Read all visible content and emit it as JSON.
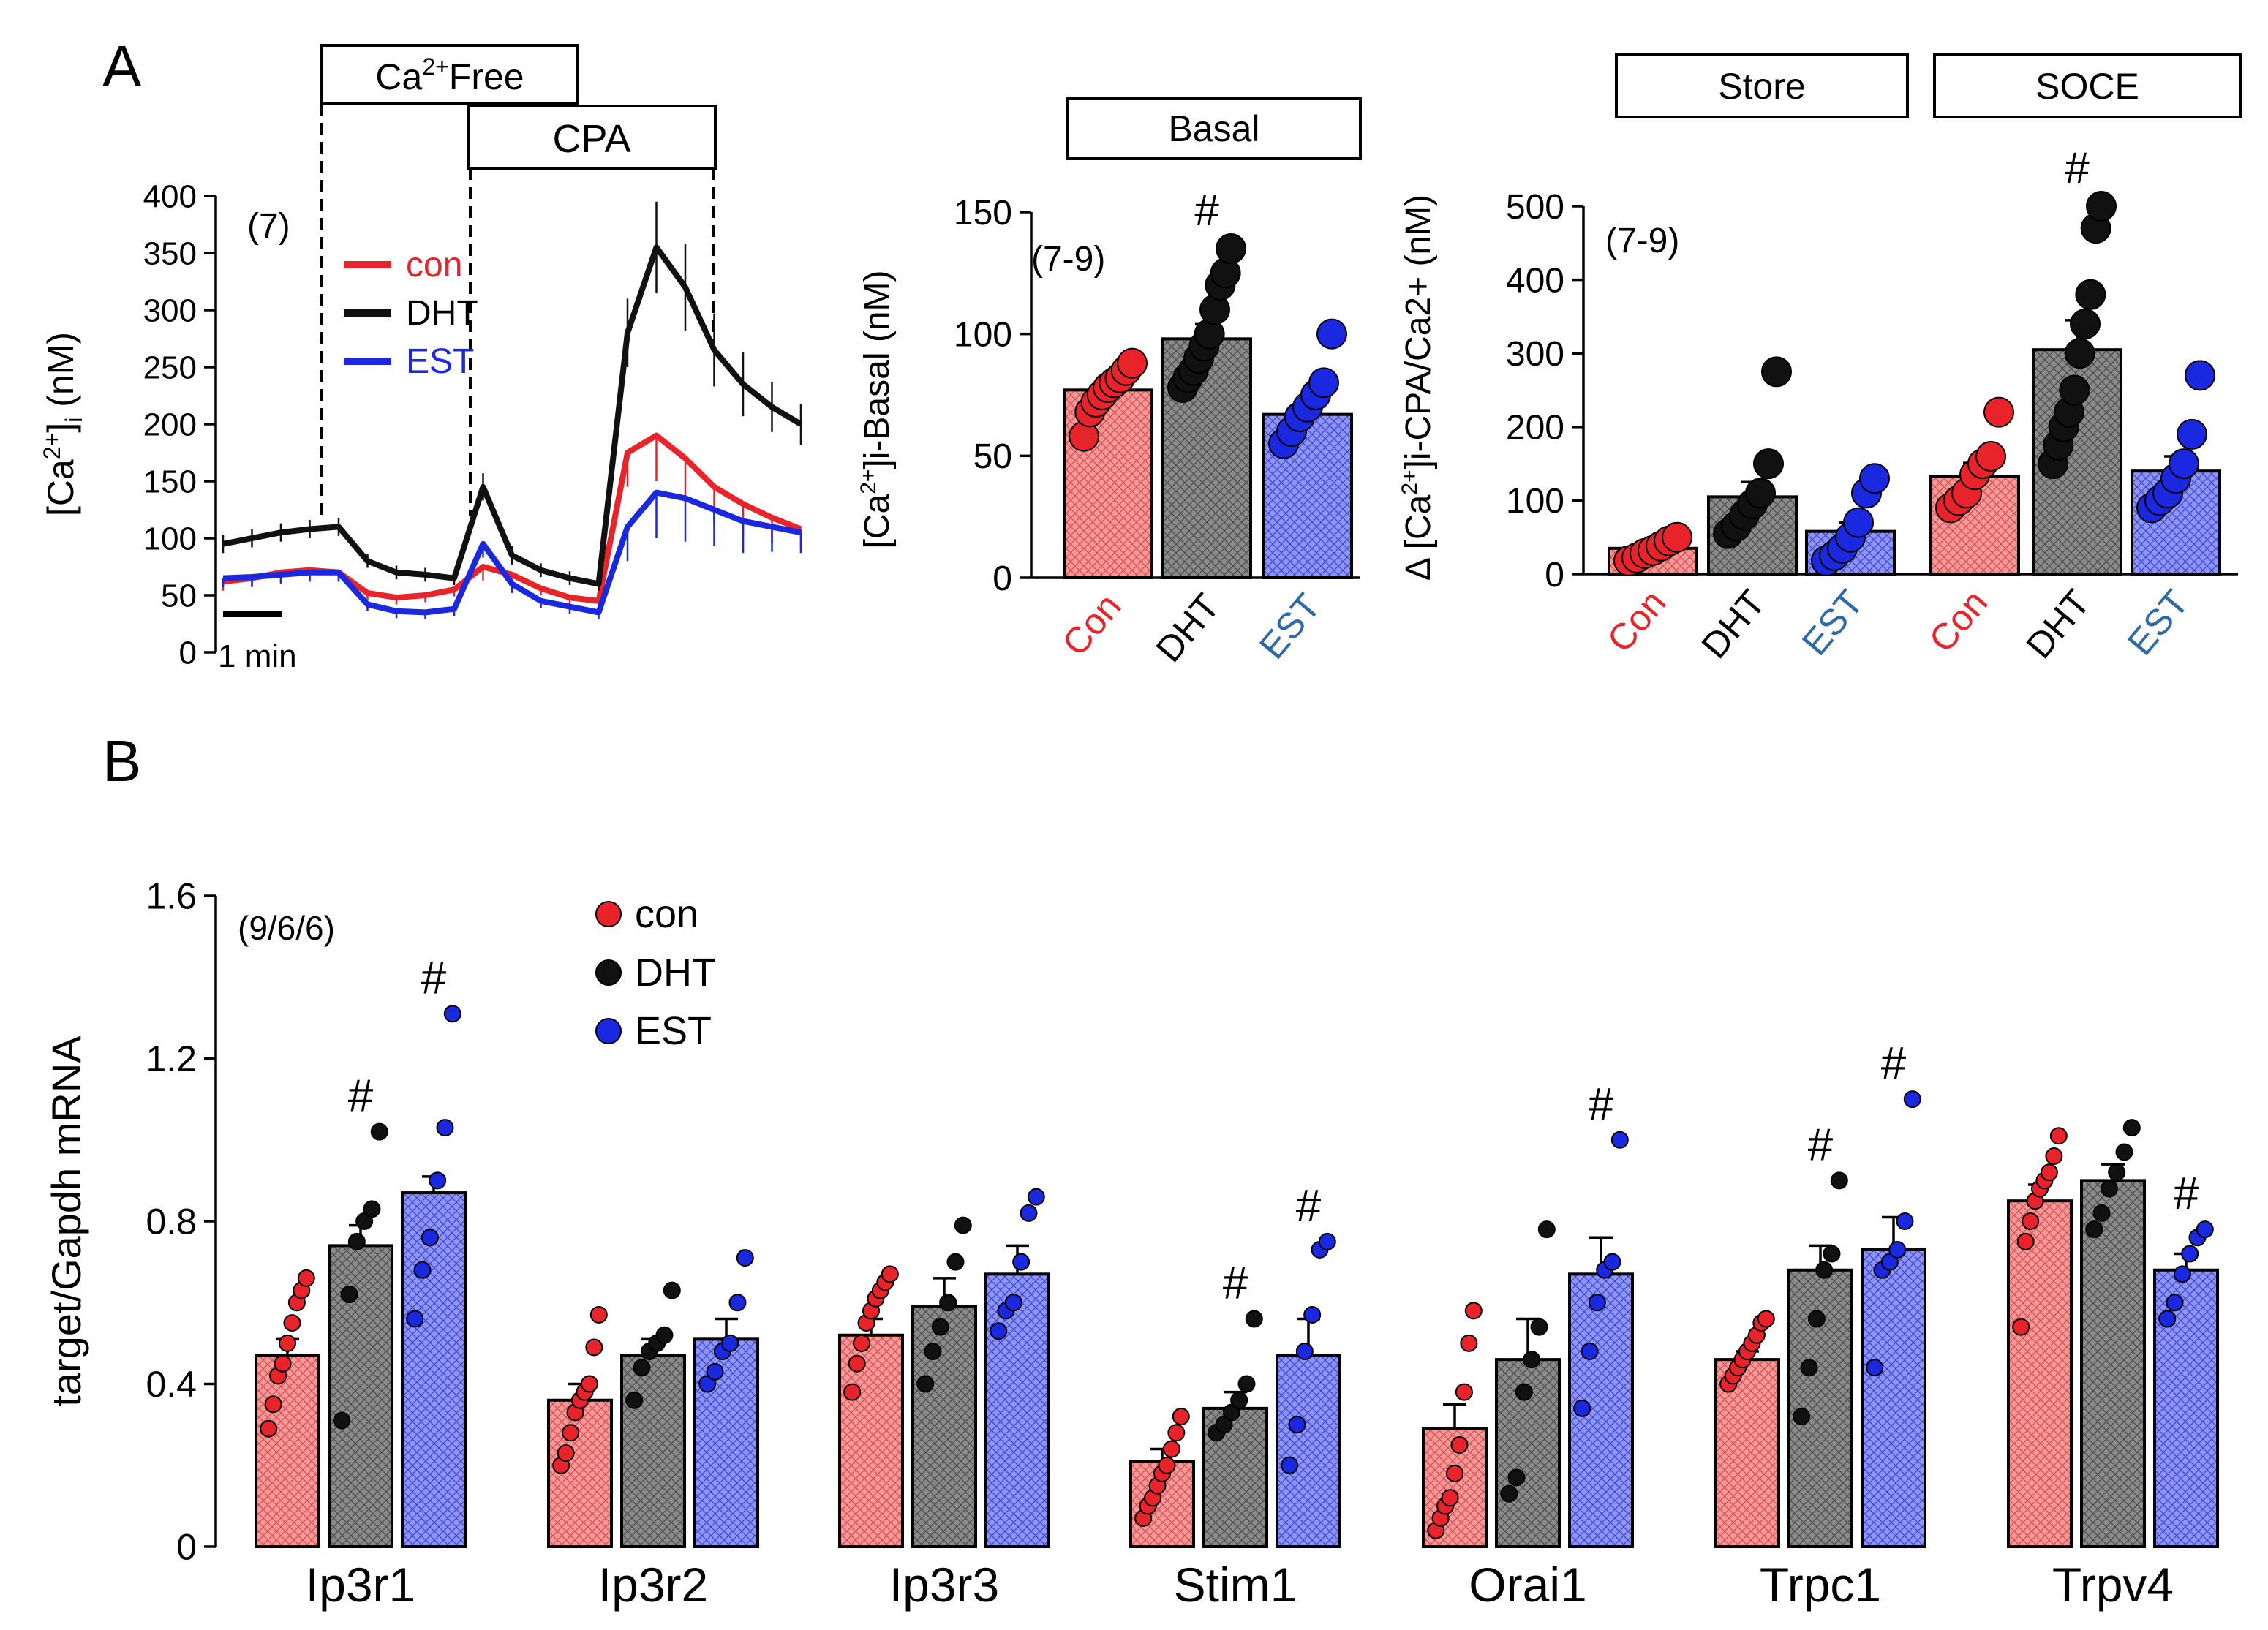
{
  "colors": {
    "con": "#e8242a",
    "dht": "#111111",
    "est": "#1a28e0",
    "con_fill": "#f29a9a",
    "dht_fill": "#8a8a8a",
    "est_fill": "#8f95f2",
    "tick_est": "#2f6aa8"
  },
  "panel_labels": {
    "a": "A",
    "b": "B"
  },
  "chart_data": [
    {
      "id": "trace",
      "type": "line",
      "title": "",
      "ylabel": "[Ca2+]i (nM)",
      "ylabel_main": "[Ca",
      "ylabel_sup": "2+",
      "ylabel_end": "]",
      "ylabel_sub": "i",
      "ylabel_tail": " (nM)",
      "ylim": [
        0,
        400
      ],
      "yticks": [
        "0",
        "50",
        "100",
        "150",
        "200",
        "250",
        "300",
        "350",
        "400"
      ],
      "n_label": "(7)",
      "scale_bar": "1 min",
      "protocol": {
        "ca_free_pre": "Ca",
        "ca_free_sup": "2+",
        "ca_free_post": "Free",
        "cpa": "CPA"
      },
      "x": [
        0,
        5,
        10,
        15,
        20,
        25,
        30,
        35,
        40,
        45,
        50,
        55,
        60,
        65,
        70,
        75,
        80,
        85,
        90,
        95,
        100
      ],
      "series": [
        {
          "name": "con",
          "key": "con",
          "values": [
            62,
            65,
            70,
            72,
            70,
            52,
            48,
            50,
            55,
            75,
            68,
            56,
            48,
            45,
            175,
            190,
            170,
            145,
            130,
            118,
            108
          ]
        },
        {
          "name": "DHT",
          "key": "dht",
          "values": [
            95,
            100,
            105,
            108,
            110,
            80,
            70,
            68,
            65,
            145,
            85,
            72,
            65,
            60,
            280,
            355,
            320,
            265,
            235,
            215,
            200
          ]
        },
        {
          "name": "EST",
          "key": "est",
          "values": [
            65,
            66,
            68,
            70,
            70,
            42,
            36,
            35,
            38,
            95,
            60,
            45,
            40,
            35,
            110,
            140,
            135,
            125,
            115,
            110,
            105
          ]
        }
      ],
      "error": [
        8,
        8,
        8,
        8,
        8,
        6,
        6,
        6,
        6,
        12,
        8,
        6,
        6,
        6,
        30,
        40,
        38,
        32,
        28,
        22,
        18
      ]
    },
    {
      "id": "basal",
      "type": "bar",
      "header": "Basal",
      "ylabel_main": "[Ca",
      "ylabel_sup": "2+",
      "ylabel_tail": "]i-Basal (nM)",
      "ylim": [
        0,
        150
      ],
      "yticks": [
        "0",
        "50",
        "100",
        "150"
      ],
      "n_label": "(7-9)",
      "categories": [
        "Con",
        "DHT",
        "EST"
      ],
      "values": [
        77,
        98,
        67
      ],
      "sem": [
        3,
        6,
        5
      ],
      "points": [
        [
          58,
          68,
          72,
          75,
          78,
          80,
          82,
          85,
          88
        ],
        [
          78,
          82,
          85,
          90,
          95,
          100,
          110,
          120,
          125,
          135
        ],
        [
          55,
          60,
          66,
          70,
          75,
          80,
          100
        ]
      ],
      "significance": [
        "",
        "#",
        ""
      ]
    },
    {
      "id": "store_soce",
      "type": "bar",
      "headers": [
        "Store",
        "SOCE"
      ],
      "ylabel": "Δ [Ca2+]i-CPA/Ca2+ (nM)",
      "ylabel_main": "Δ [Ca",
      "ylabel_sup": "2+",
      "ylabel_tail": "]i-CPA/Ca2+ (nM)",
      "ylim": [
        0,
        500
      ],
      "yticks": [
        "0",
        "100",
        "200",
        "300",
        "400",
        "500"
      ],
      "n_label": "(7-9)",
      "categories": [
        "Con",
        "DHT",
        "EST",
        "Con",
        "DHT",
        "EST"
      ],
      "values": [
        35,
        105,
        58,
        133,
        305,
        140
      ],
      "sem": [
        6,
        20,
        12,
        18,
        40,
        20
      ],
      "points": [
        [
          18,
          22,
          28,
          32,
          38,
          45,
          50
        ],
        [
          55,
          65,
          80,
          95,
          110,
          150,
          275
        ],
        [
          18,
          25,
          35,
          50,
          70,
          110,
          130
        ],
        [
          90,
          100,
          110,
          135,
          150,
          160,
          220
        ],
        [
          150,
          175,
          200,
          220,
          250,
          300,
          340,
          380,
          470,
          500
        ],
        [
          90,
          100,
          110,
          130,
          150,
          190,
          270
        ]
      ],
      "significance": [
        "",
        "",
        "",
        "",
        "#",
        ""
      ]
    },
    {
      "id": "mrna",
      "type": "bar",
      "ylabel": "target/Gapdh mRNA",
      "ylim": [
        0,
        1.6
      ],
      "yticks": [
        "0",
        "0.4",
        "0.8",
        "1.2",
        "1.6"
      ],
      "n_label": "(9/6/6)",
      "legend": [
        "con",
        "DHT",
        "EST"
      ],
      "categories": [
        "Ip3r1",
        "Ip3r2",
        "Ip3r3",
        "Stim1",
        "Orai1",
        "Trpc1",
        "Trpv4"
      ],
      "series": [
        {
          "name": "con",
          "key": "con",
          "values": [
            0.47,
            0.36,
            0.52,
            0.21,
            0.29,
            0.46,
            0.85
          ]
        },
        {
          "name": "DHT",
          "key": "dht",
          "values": [
            0.74,
            0.47,
            0.59,
            0.34,
            0.46,
            0.68,
            0.9
          ]
        },
        {
          "name": "EST",
          "key": "est",
          "values": [
            0.87,
            0.51,
            0.67,
            0.47,
            0.67,
            0.73,
            0.68
          ]
        }
      ],
      "sem": [
        [
          0.04,
          0.05,
          0.04
        ],
        [
          0.04,
          0.04,
          0.05
        ],
        [
          0.04,
          0.07,
          0.07
        ],
        [
          0.03,
          0.04,
          0.09
        ],
        [
          0.06,
          0.1,
          0.09
        ],
        [
          0.02,
          0.06,
          0.08
        ],
        [
          0.04,
          0.04,
          0.04
        ]
      ],
      "points": [
        [
          [
            0.29,
            0.35,
            0.42,
            0.45,
            0.5,
            0.55,
            0.6,
            0.63,
            0.66
          ],
          [
            0.31,
            0.62,
            0.75,
            0.8,
            0.83,
            1.02
          ],
          [
            0.56,
            0.68,
            0.76,
            0.9,
            1.03,
            1.31
          ]
        ],
        [
          [
            0.2,
            0.23,
            0.28,
            0.33,
            0.36,
            0.38,
            0.4,
            0.49,
            0.57
          ],
          [
            0.36,
            0.44,
            0.48,
            0.5,
            0.52,
            0.63
          ],
          [
            0.4,
            0.43,
            0.48,
            0.5,
            0.6,
            0.71
          ]
        ],
        [
          [
            0.38,
            0.45,
            0.5,
            0.55,
            0.58,
            0.61,
            0.63,
            0.65,
            0.67
          ],
          [
            0.4,
            0.48,
            0.54,
            0.6,
            0.7,
            0.79
          ],
          [
            0.53,
            0.58,
            0.6,
            0.7,
            0.82,
            0.86
          ]
        ],
        [
          [
            0.07,
            0.1,
            0.12,
            0.15,
            0.18,
            0.2,
            0.24,
            0.28,
            0.32
          ],
          [
            0.28,
            0.3,
            0.33,
            0.36,
            0.4,
            0.56
          ],
          [
            0.2,
            0.3,
            0.48,
            0.57,
            0.73,
            0.75
          ]
        ],
        [
          [
            0.04,
            0.07,
            0.1,
            0.12,
            0.18,
            0.25,
            0.38,
            0.5,
            0.58
          ],
          [
            0.13,
            0.17,
            0.38,
            0.46,
            0.54,
            0.78
          ],
          [
            0.34,
            0.48,
            0.6,
            0.68,
            0.7,
            1.0
          ]
        ],
        [
          [
            0.4,
            0.42,
            0.44,
            0.46,
            0.48,
            0.5,
            0.52,
            0.55,
            0.56
          ],
          [
            0.32,
            0.44,
            0.56,
            0.68,
            0.72,
            0.9
          ],
          [
            0.44,
            0.68,
            0.7,
            0.73,
            0.8,
            1.1
          ]
        ],
        [
          [
            0.54,
            0.75,
            0.8,
            0.85,
            0.88,
            0.9,
            0.92,
            0.96,
            1.01
          ],
          [
            0.78,
            0.82,
            0.88,
            0.92,
            0.97,
            1.03
          ],
          [
            0.56,
            0.6,
            0.67,
            0.72,
            0.76,
            0.78
          ]
        ]
      ],
      "significance": [
        [
          "",
          "#",
          "#"
        ],
        [
          "",
          "",
          ""
        ],
        [
          "",
          "",
          ""
        ],
        [
          "",
          "#",
          "#"
        ],
        [
          "",
          "",
          "#"
        ],
        [
          "",
          "#",
          "#"
        ],
        [
          "",
          "",
          "#"
        ]
      ]
    }
  ]
}
